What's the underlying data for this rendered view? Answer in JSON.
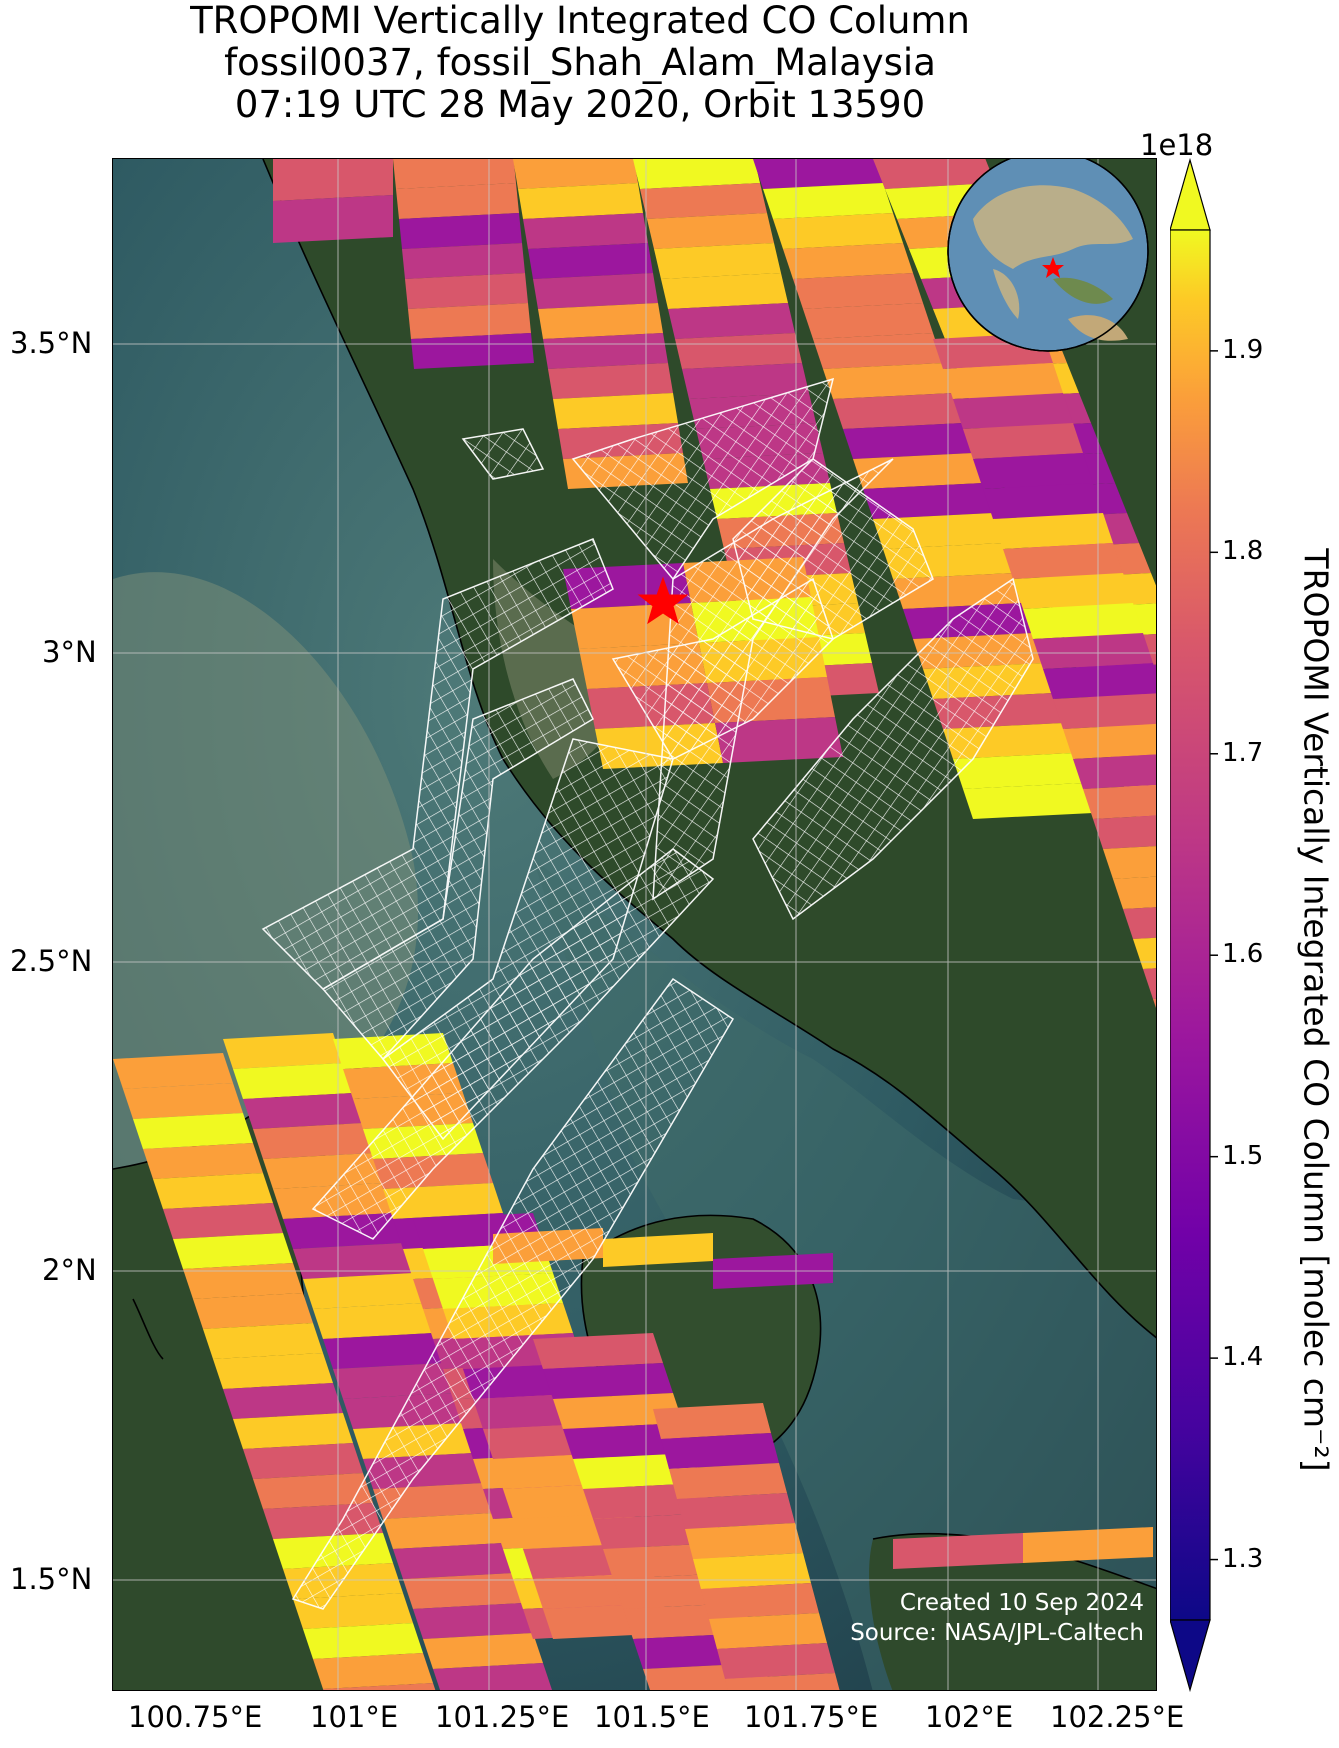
{
  "title": {
    "line1": "TROPOMI Vertically Integrated CO Column",
    "line2": "fossil0037, fossil_Shah_Alam_Malaysia",
    "line3": "07:19 UTC 28 May 2020, Orbit 13590"
  },
  "credit": {
    "created": "Created 10 Sep 2024",
    "source": "Source: NASA/JPL-Caltech"
  },
  "axes": {
    "lon_ticks": [
      "100.75°E",
      "101°E",
      "101.25°E",
      "101.5°E",
      "101.75°E",
      "102°E",
      "102.25°E"
    ],
    "lat_ticks": [
      "3.5°N",
      "3°N",
      "2.5°N",
      "2°N",
      "1.5°N"
    ]
  },
  "colorbar": {
    "label": "TROPOMI Vertically Integrated CO Column [molec cm⁻²]",
    "exponent": "1e18",
    "ticks": [
      "1.3",
      "1.4",
      "1.5",
      "1.6",
      "1.7",
      "1.8",
      "1.9"
    ],
    "colormap": "plasma",
    "range": [
      1.27,
      1.96
    ]
  },
  "site_marker": {
    "shape": "star",
    "color": "#ff0000",
    "lon": 101.48,
    "lat": 3.09
  },
  "inset_globe": {
    "description_marker": "star",
    "color": "#ff0000"
  },
  "colors": {
    "star": "#ff0000",
    "grid": "#c8c8c8",
    "overlay_grid": "#ffffff"
  }
}
